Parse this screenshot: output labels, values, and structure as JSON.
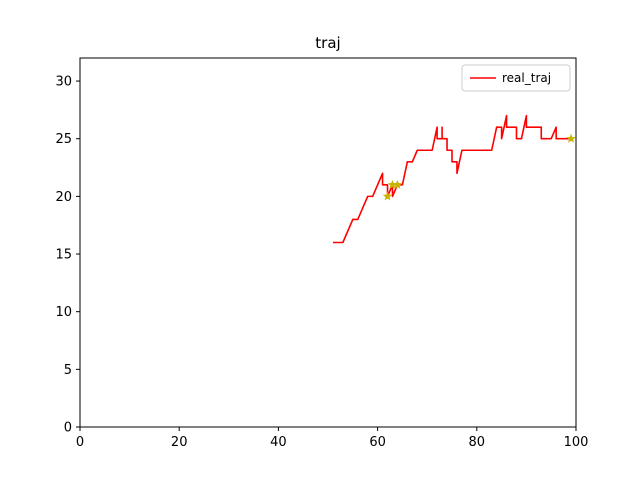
{
  "chart_data": {
    "type": "line",
    "title": "traj",
    "xlabel": "",
    "ylabel": "",
    "xlim": [
      0,
      100
    ],
    "ylim": [
      0,
      32
    ],
    "x_ticks": [
      0,
      20,
      40,
      60,
      80,
      100
    ],
    "y_ticks": [
      0,
      5,
      10,
      15,
      20,
      25,
      30
    ],
    "grid": false,
    "legend": {
      "position": "upper-right",
      "entries": [
        "real_traj"
      ]
    },
    "series": [
      {
        "name": "real_traj",
        "color": "#ff0000",
        "points": [
          [
            51,
            16
          ],
          [
            53,
            16
          ],
          [
            55,
            18
          ],
          [
            56,
            18
          ],
          [
            58,
            20
          ],
          [
            59,
            20
          ],
          [
            61,
            22
          ],
          [
            61,
            21
          ],
          [
            62,
            21
          ],
          [
            62,
            20
          ],
          [
            63,
            21
          ],
          [
            63,
            20
          ],
          [
            64,
            21
          ],
          [
            65,
            21
          ],
          [
            66,
            23
          ],
          [
            67,
            23
          ],
          [
            68,
            24
          ],
          [
            71,
            24
          ],
          [
            72,
            26
          ],
          [
            72,
            25
          ],
          [
            73,
            25
          ],
          [
            73,
            26
          ],
          [
            73,
            25
          ],
          [
            74,
            25
          ],
          [
            74,
            24
          ],
          [
            75,
            24
          ],
          [
            75,
            23
          ],
          [
            76,
            23
          ],
          [
            76,
            22
          ],
          [
            77,
            24
          ],
          [
            83,
            24
          ],
          [
            84,
            26
          ],
          [
            85,
            26
          ],
          [
            85,
            25
          ],
          [
            86,
            27
          ],
          [
            86,
            26
          ],
          [
            88,
            26
          ],
          [
            88,
            25
          ],
          [
            89,
            25
          ],
          [
            90,
            27
          ],
          [
            90,
            26
          ],
          [
            93,
            26
          ],
          [
            93,
            25
          ],
          [
            95,
            25
          ],
          [
            96,
            26
          ],
          [
            96,
            25
          ],
          [
            99,
            25
          ]
        ]
      }
    ],
    "markers": {
      "symbol": "star",
      "color": "#c8b400",
      "points": [
        [
          62,
          20
        ],
        [
          63,
          21
        ],
        [
          64,
          21
        ],
        [
          99,
          25
        ]
      ]
    }
  }
}
